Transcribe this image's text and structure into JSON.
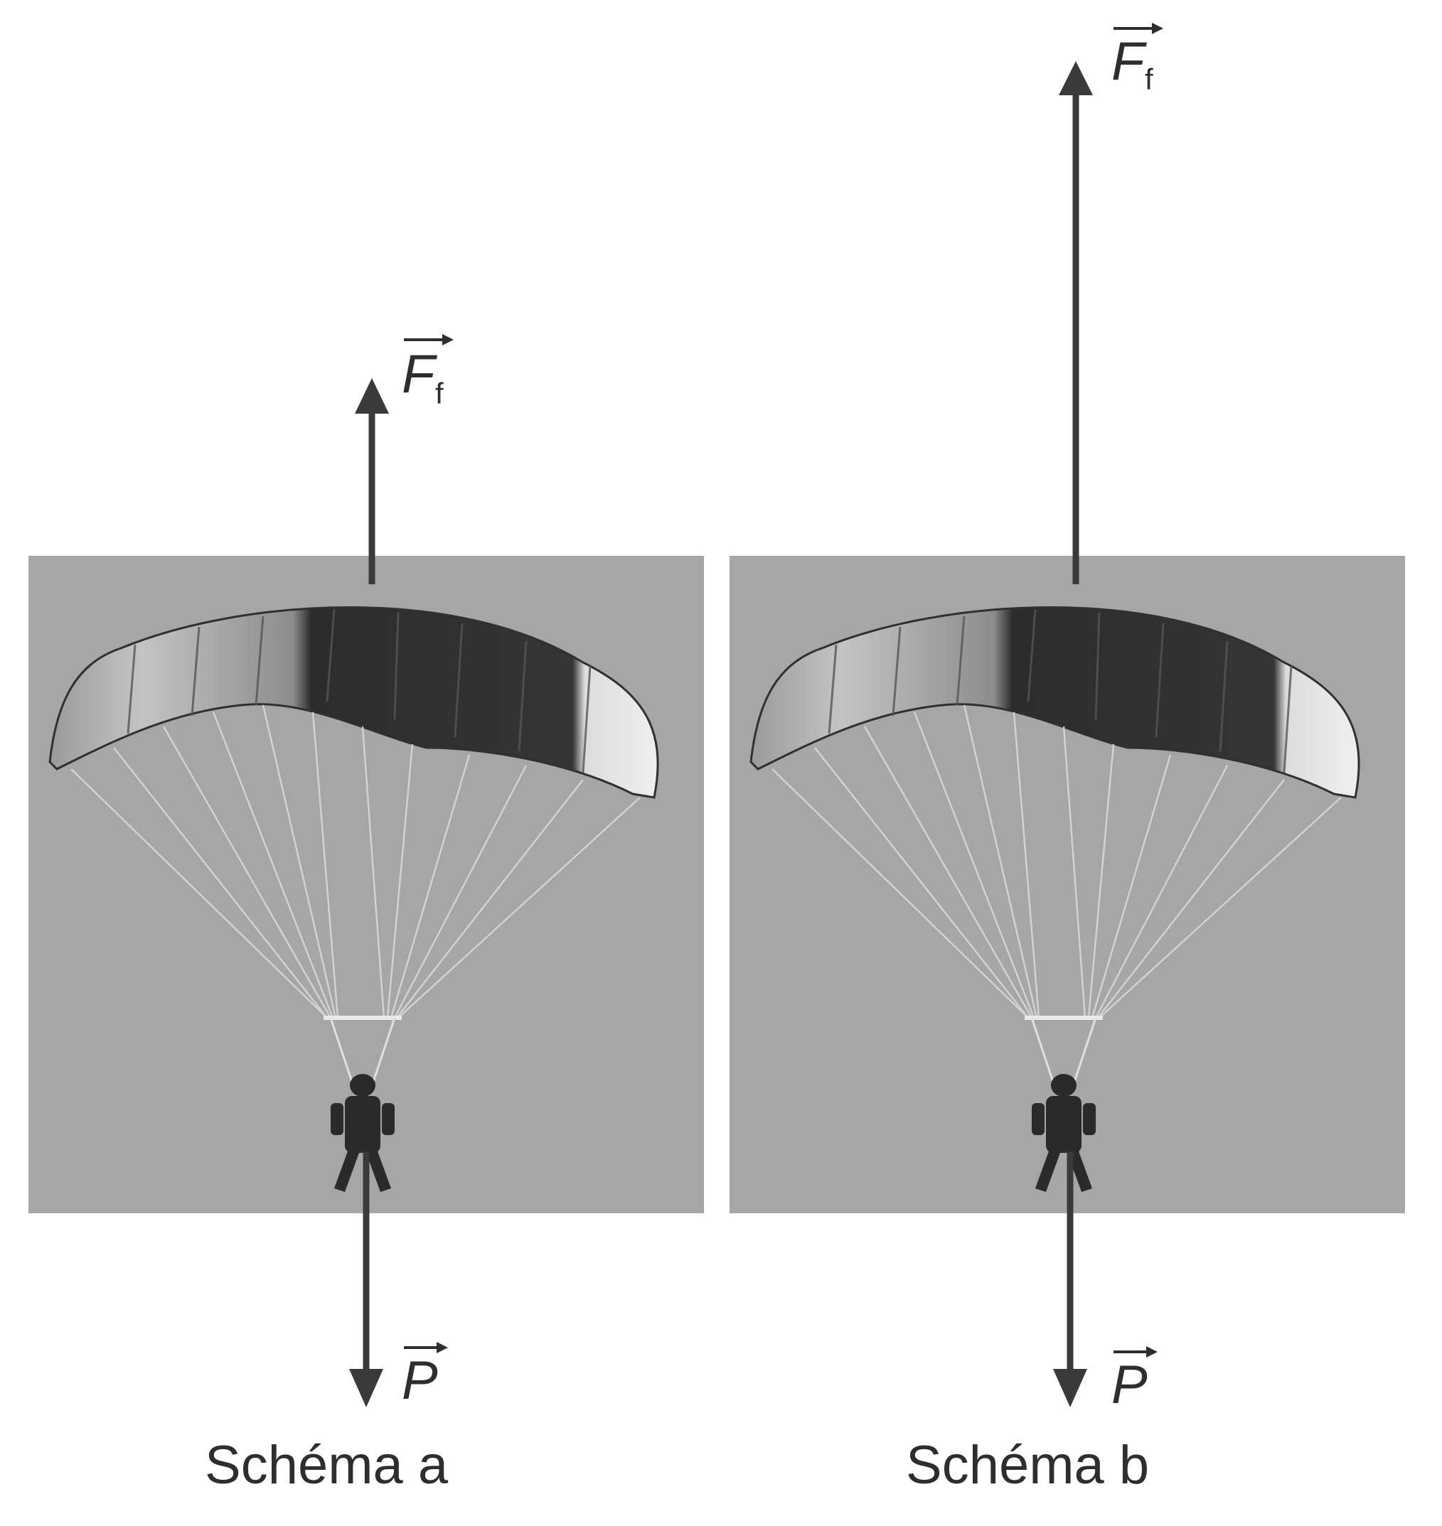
{
  "diagrams": [
    {
      "caption": "Schéma a",
      "friction_label": {
        "symbol": "F",
        "subscript": "f"
      },
      "weight_label": {
        "symbol": "P"
      }
    },
    {
      "caption": "Schéma b",
      "friction_label": {
        "symbol": "F",
        "subscript": "f"
      },
      "weight_label": {
        "symbol": "P"
      }
    }
  ],
  "colors": {
    "sky": "#a6a6a6",
    "canopy_dark": "#2f2f2f",
    "canopy_light": "#bdbdbd",
    "arrow": "#3a3a3a",
    "text": "#2e2e2e"
  }
}
